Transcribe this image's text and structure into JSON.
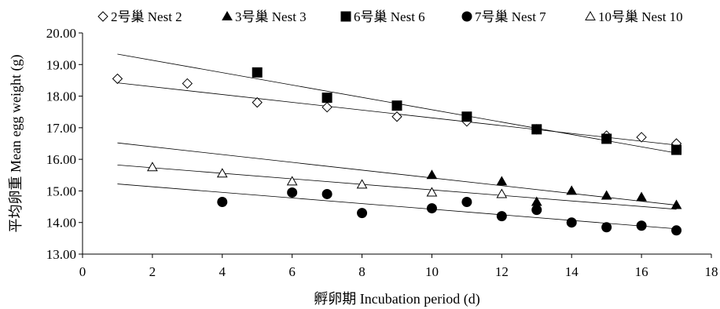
{
  "chart_data": {
    "type": "scatter",
    "title": "",
    "xlabel": "孵卵期 Incubation period (d)",
    "ylabel": "平均卵重 Mean egg weight (g)",
    "xlim": [
      0,
      18
    ],
    "ylim": [
      13.0,
      20.0
    ],
    "x_ticks": [
      "0",
      "2",
      "4",
      "6",
      "8",
      "10",
      "12",
      "14",
      "16",
      "18"
    ],
    "y_ticks": [
      "13.00",
      "14.00",
      "15.00",
      "16.00",
      "17.00",
      "18.00",
      "19.00",
      "20.00"
    ],
    "grid": false,
    "legend_position": "top",
    "series": [
      {
        "name": "2号巢 Nest 2",
        "marker": "diamond-open",
        "x": [
          1,
          3,
          5,
          7,
          9,
          11,
          13,
          15,
          16,
          17
        ],
        "y": [
          18.55,
          18.4,
          17.8,
          17.65,
          17.35,
          17.2,
          16.95,
          16.75,
          16.7,
          16.5
        ],
        "trend": [
          18.42,
          16.45
        ]
      },
      {
        "name": "3号巢 Nest 3",
        "marker": "triangle-filled",
        "x": [
          10,
          12,
          13,
          14,
          15,
          16,
          17
        ],
        "y": [
          15.5,
          15.3,
          14.65,
          15.0,
          14.85,
          14.8,
          14.55
        ],
        "trend": [
          16.52,
          14.55
        ]
      },
      {
        "name": "6号巢 Nest 6",
        "marker": "square-filled",
        "x": [
          5,
          7,
          9,
          11,
          13,
          15,
          17
        ],
        "y": [
          18.75,
          17.95,
          17.7,
          17.35,
          16.95,
          16.65,
          16.3
        ],
        "trend": [
          19.33,
          16.2
        ]
      },
      {
        "name": "7号巢 Nest 7",
        "marker": "circle-filled",
        "x": [
          4,
          6,
          7,
          8,
          10,
          11,
          12,
          13,
          14,
          15,
          16,
          17
        ],
        "y": [
          14.65,
          14.95,
          14.9,
          14.3,
          14.45,
          14.65,
          14.2,
          14.4,
          14.0,
          13.85,
          13.9,
          13.75
        ],
        "trend": [
          15.22,
          13.8
        ]
      },
      {
        "name": "10号巢 Nest 10",
        "marker": "triangle-open",
        "x": [
          2,
          4,
          6,
          8,
          10,
          12
        ],
        "y": [
          15.75,
          15.55,
          15.3,
          15.2,
          14.95,
          14.9
        ],
        "trend": [
          15.82,
          14.42
        ]
      }
    ]
  }
}
